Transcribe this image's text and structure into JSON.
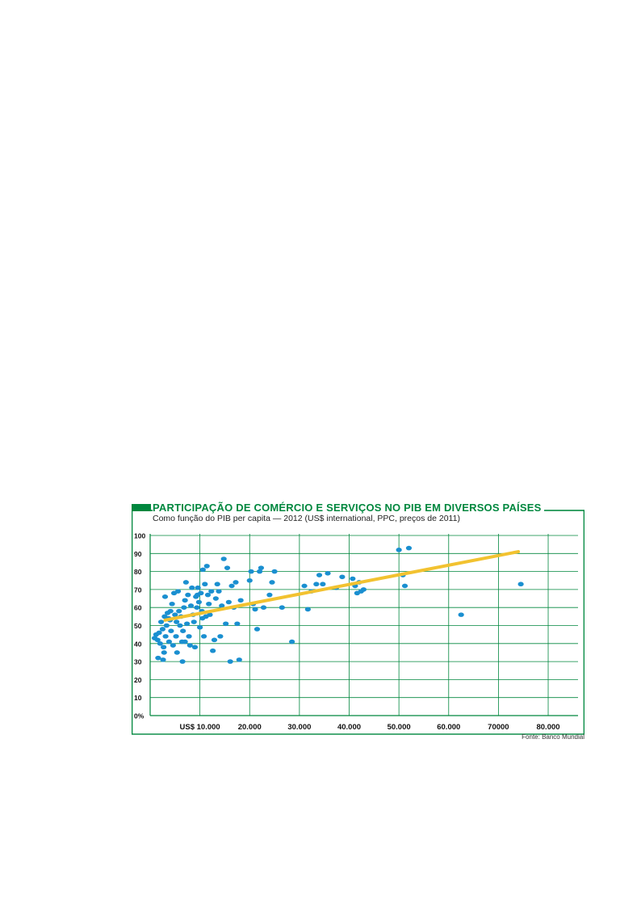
{
  "colors": {
    "accent": "#00873e",
    "grid": "#00873e",
    "points": "#1a8fd0",
    "trend": "#f2c230",
    "text": "#111111"
  },
  "chart_data": {
    "type": "scatter",
    "title": "PARTICIPAÇÃO DE COMÉRCIO E SERVIÇOS NO PIB EM DIVERSOS PAÍSES",
    "subtitle": "Como função do PIB per capita — 2012 (US$ international, PPC, preços de 2011)",
    "source": "Fonte: Banco Mundial",
    "xlim": [
      0,
      86000
    ],
    "ylim": [
      0,
      100
    ],
    "x_ticks": [
      {
        "value": 10000,
        "label": "US$ 10.000"
      },
      {
        "value": 20000,
        "label": "20.000"
      },
      {
        "value": 30000,
        "label": "30.000"
      },
      {
        "value": 40000,
        "label": "40.000"
      },
      {
        "value": 50000,
        "label": "50.000"
      },
      {
        "value": 60000,
        "label": "60.000"
      },
      {
        "value": 70000,
        "label": "70000"
      },
      {
        "value": 80000,
        "label": "80.000"
      }
    ],
    "y_ticks": [
      {
        "value": 0,
        "label": "0%"
      },
      {
        "value": 10,
        "label": "10"
      },
      {
        "value": 20,
        "label": "20"
      },
      {
        "value": 30,
        "label": "30"
      },
      {
        "value": 40,
        "label": "40"
      },
      {
        "value": 50,
        "label": "50"
      },
      {
        "value": 60,
        "label": "60"
      },
      {
        "value": 70,
        "label": "70"
      },
      {
        "value": 80,
        "label": "80"
      },
      {
        "value": 90,
        "label": "90"
      },
      {
        "value": 100,
        "label": "100"
      }
    ],
    "grid": true,
    "trend": {
      "x": [
        3000,
        74000
      ],
      "y": [
        53,
        91
      ]
    },
    "points": [
      {
        "x": 900,
        "y": 43
      },
      {
        "x": 1200,
        "y": 45
      },
      {
        "x": 1500,
        "y": 42
      },
      {
        "x": 1800,
        "y": 46
      },
      {
        "x": 2000,
        "y": 40
      },
      {
        "x": 2200,
        "y": 52
      },
      {
        "x": 2500,
        "y": 48
      },
      {
        "x": 2700,
        "y": 38
      },
      {
        "x": 2900,
        "y": 55
      },
      {
        "x": 3100,
        "y": 44
      },
      {
        "x": 3300,
        "y": 50
      },
      {
        "x": 3500,
        "y": 57
      },
      {
        "x": 1600,
        "y": 32
      },
      {
        "x": 2600,
        "y": 31
      },
      {
        "x": 2800,
        "y": 35
      },
      {
        "x": 3800,
        "y": 41
      },
      {
        "x": 4000,
        "y": 53
      },
      {
        "x": 4200,
        "y": 47
      },
      {
        "x": 4400,
        "y": 62
      },
      {
        "x": 4600,
        "y": 39
      },
      {
        "x": 4800,
        "y": 68
      },
      {
        "x": 5000,
        "y": 56
      },
      {
        "x": 5200,
        "y": 44
      },
      {
        "x": 5400,
        "y": 35
      },
      {
        "x": 5600,
        "y": 69
      },
      {
        "x": 5800,
        "y": 58
      },
      {
        "x": 6000,
        "y": 50
      },
      {
        "x": 6200,
        "y": 55
      },
      {
        "x": 6400,
        "y": 41
      },
      {
        "x": 6600,
        "y": 47
      },
      {
        "x": 6800,
        "y": 60
      },
      {
        "x": 7000,
        "y": 64
      },
      {
        "x": 3000,
        "y": 66
      },
      {
        "x": 3700,
        "y": 54
      },
      {
        "x": 4100,
        "y": 58
      },
      {
        "x": 5300,
        "y": 52
      },
      {
        "x": 7200,
        "y": 74
      },
      {
        "x": 7400,
        "y": 51
      },
      {
        "x": 7600,
        "y": 67
      },
      {
        "x": 7800,
        "y": 44
      },
      {
        "x": 8000,
        "y": 39
      },
      {
        "x": 8200,
        "y": 61
      },
      {
        "x": 8400,
        "y": 71
      },
      {
        "x": 8600,
        "y": 56
      },
      {
        "x": 8800,
        "y": 52
      },
      {
        "x": 9000,
        "y": 38
      },
      {
        "x": 9200,
        "y": 66
      },
      {
        "x": 9400,
        "y": 60
      },
      {
        "x": 9600,
        "y": 71
      },
      {
        "x": 9800,
        "y": 63
      },
      {
        "x": 10000,
        "y": 49
      },
      {
        "x": 10200,
        "y": 68
      },
      {
        "x": 10400,
        "y": 58
      },
      {
        "x": 10600,
        "y": 81
      },
      {
        "x": 10800,
        "y": 44
      },
      {
        "x": 11000,
        "y": 73
      },
      {
        "x": 11200,
        "y": 55
      },
      {
        "x": 11400,
        "y": 83
      },
      {
        "x": 11600,
        "y": 67
      },
      {
        "x": 11800,
        "y": 62
      },
      {
        "x": 12000,
        "y": 56
      },
      {
        "x": 12300,
        "y": 69
      },
      {
        "x": 12600,
        "y": 36
      },
      {
        "x": 12900,
        "y": 42
      },
      {
        "x": 13200,
        "y": 65
      },
      {
        "x": 13500,
        "y": 73
      },
      {
        "x": 13800,
        "y": 69
      },
      {
        "x": 14100,
        "y": 44
      },
      {
        "x": 14400,
        "y": 61
      },
      {
        "x": 14800,
        "y": 87
      },
      {
        "x": 15200,
        "y": 51
      },
      {
        "x": 15500,
        "y": 82
      },
      {
        "x": 15800,
        "y": 63
      },
      {
        "x": 16100,
        "y": 30
      },
      {
        "x": 16400,
        "y": 72
      },
      {
        "x": 16800,
        "y": 60
      },
      {
        "x": 17200,
        "y": 74
      },
      {
        "x": 17500,
        "y": 51
      },
      {
        "x": 17900,
        "y": 31
      },
      {
        "x": 18200,
        "y": 64
      },
      {
        "x": 6500,
        "y": 30
      },
      {
        "x": 7000,
        "y": 41
      },
      {
        "x": 9500,
        "y": 67
      },
      {
        "x": 10500,
        "y": 54
      },
      {
        "x": 20000,
        "y": 75
      },
      {
        "x": 20300,
        "y": 80
      },
      {
        "x": 20700,
        "y": 62
      },
      {
        "x": 21100,
        "y": 59
      },
      {
        "x": 21500,
        "y": 48
      },
      {
        "x": 22000,
        "y": 80
      },
      {
        "x": 22300,
        "y": 82
      },
      {
        "x": 22800,
        "y": 60
      },
      {
        "x": 24000,
        "y": 67
      },
      {
        "x": 24500,
        "y": 74
      },
      {
        "x": 25000,
        "y": 80
      },
      {
        "x": 26500,
        "y": 60
      },
      {
        "x": 28500,
        "y": 41
      },
      {
        "x": 31000,
        "y": 72
      },
      {
        "x": 31700,
        "y": 59
      },
      {
        "x": 32400,
        "y": 69
      },
      {
        "x": 33400,
        "y": 73
      },
      {
        "x": 34000,
        "y": 78
      },
      {
        "x": 34700,
        "y": 73
      },
      {
        "x": 35700,
        "y": 79
      },
      {
        "x": 37400,
        "y": 71
      },
      {
        "x": 38600,
        "y": 77
      },
      {
        "x": 40700,
        "y": 76
      },
      {
        "x": 41200,
        "y": 72
      },
      {
        "x": 41600,
        "y": 68
      },
      {
        "x": 42000,
        "y": 74
      },
      {
        "x": 42400,
        "y": 69
      },
      {
        "x": 42900,
        "y": 70
      },
      {
        "x": 50000,
        "y": 92
      },
      {
        "x": 52000,
        "y": 93
      },
      {
        "x": 50800,
        "y": 78
      },
      {
        "x": 51200,
        "y": 72
      },
      {
        "x": 62500,
        "y": 56
      },
      {
        "x": 74500,
        "y": 73
      }
    ]
  }
}
